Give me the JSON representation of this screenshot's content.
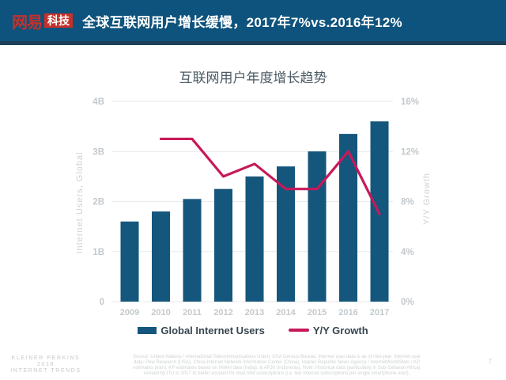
{
  "header": {
    "logo": {
      "netease": "网易",
      "tech": "科技"
    },
    "title": "全球互联网用户增长缓慢，2017年7%vs.2016年12%"
  },
  "chart_data": {
    "type": "bar+line",
    "title": "互联网用户年度增长趋势",
    "categories": [
      "2009",
      "2010",
      "2011",
      "2012",
      "2013",
      "2014",
      "2015",
      "2016",
      "2017"
    ],
    "series": [
      {
        "name": "Global Internet Users",
        "type": "bar",
        "axis": "left",
        "color": "#15567C",
        "values": [
          1.6,
          1.8,
          2.05,
          2.25,
          2.5,
          2.7,
          3.0,
          3.35,
          3.6
        ]
      },
      {
        "name": "Y/Y Growth",
        "type": "line",
        "axis": "right",
        "color": "#C7195A",
        "values": [
          null,
          13,
          13,
          10,
          11,
          9,
          9,
          12,
          7
        ]
      }
    ],
    "left_axis": {
      "title": "Internet Users, Global",
      "min": 0,
      "max": 4,
      "ticks": [
        "4B",
        "3B",
        "2B",
        "1B",
        "0"
      ]
    },
    "right_axis": {
      "title": "Y/Y Growth",
      "min": 0,
      "max": 16,
      "ticks": [
        "16%",
        "12%",
        "8%",
        "4%",
        "0%"
      ]
    },
    "grid": true,
    "legend_position": "bottom"
  },
  "legend": {
    "items": [
      {
        "label": "Global Internet Users",
        "marker": "swatch",
        "color": "#15567C"
      },
      {
        "label": "Y/Y Growth",
        "marker": "line",
        "color": "#C7195A"
      }
    ]
  },
  "footer": {
    "brand": [
      "KLEINER PERKINS",
      "2018",
      "INTERNET TRENDS"
    ],
    "source_lines": [
      "Source: United Nations / International Telecommunications Union, USA Census Bureau. Internet user data is as of mid-year. Internet user",
      "data: Pew Research (USA), China Internet Network Information Center (China), Islamic Republic News Agency / InternetWorldStats / KP",
      "estimates (Iran), KP estimates based on IAMAI data (India), & APJII (Indonesia). Note: Historical data (particularly in Sub-Saharan Africa)",
      "revised by ITU in 2017 to better account for dual-SIM subscriptions (i.e. live Internet subscriptions per single smartphone user)."
    ],
    "page_number": "7"
  },
  "colors": {
    "header_bg": "#0E537D",
    "header_strip": "#1D4059",
    "logo_red": "#C5312B",
    "bar": "#15567C",
    "line": "#C7195A",
    "grid": "#E8EAEC",
    "axis_text": "#C3C9CD",
    "chart_title_text": "#4A5A64",
    "legend_text": "#37464F",
    "footer_text": "#C5C9CC"
  }
}
